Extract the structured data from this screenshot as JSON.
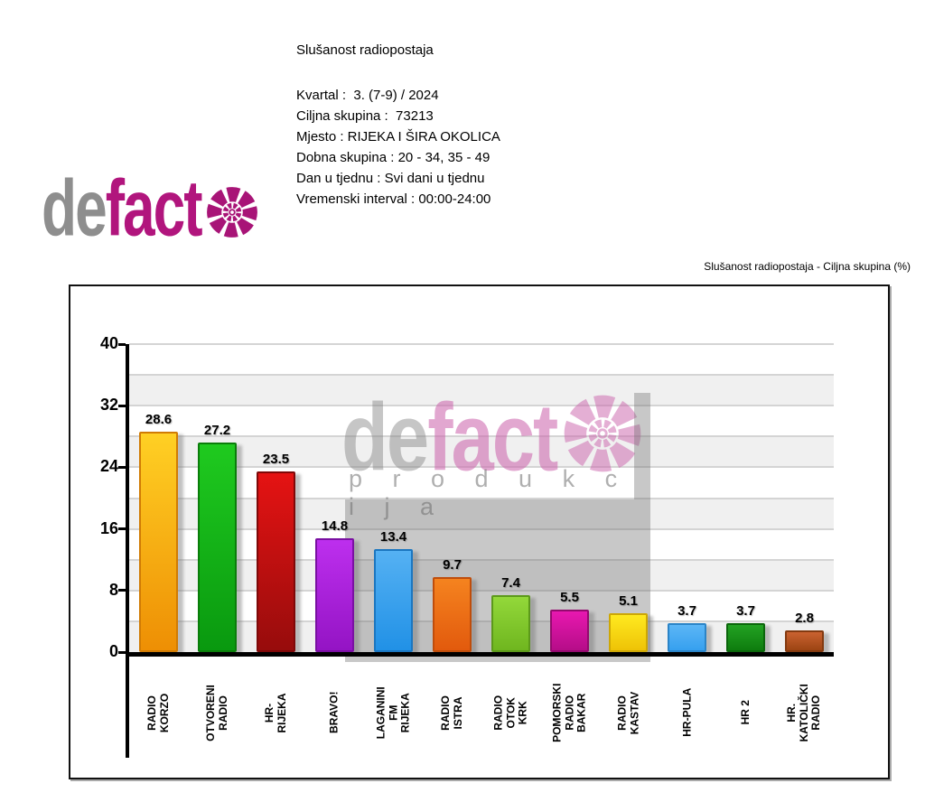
{
  "header": {
    "title": "Slušanost radiopostaja",
    "details": [
      "Kvartal :  3. (7-9) / 2024",
      "Ciljna skupina :  73213",
      "Mjesto : RIJEKA I ŠIRA OKOLICA",
      "Dobna skupina : 20 - 34, 35 - 49",
      "Dan u tjednu : Svi dani u tjednu",
      "Vremenski interval : 00:00-24:00"
    ]
  },
  "logo": {
    "part1": "de",
    "part2": "fact",
    "gray_color": "#8e8e8e",
    "magenta_color": "#b1157d"
  },
  "watermark": {
    "part1": "de",
    "part2": "fact",
    "subtitle": "p r o d u k c i j a"
  },
  "chart_caption": "Slušanost radiopostaja - Ciljna skupina (%)",
  "chart_data": {
    "type": "bar",
    "title": "Slušanost radiopostaja - Ciljna skupina (%)",
    "categories": [
      "RADIO\nKORZO",
      "OTVORENI\nRADIO",
      "HR-RIJEKA",
      "BRAVO!",
      "LAGANINI FM\nRIJEKA",
      "RADIO ISTRA",
      "RADIO OTOK\nKRK",
      "POMORSKI\nRADIO BAKAR",
      "RADIO\nKASTAV",
      "HR-PULA",
      "HR 2",
      "HR.\nKATOLIČKI\nRADIO"
    ],
    "values": [
      28.6,
      27.2,
      23.5,
      14.8,
      13.4,
      9.7,
      7.4,
      5.5,
      5.1,
      3.7,
      3.7,
      2.8
    ],
    "bar_colors": [
      {
        "top": "#ffd024",
        "bottom": "#ee8f04",
        "border": "#d07b04"
      },
      {
        "top": "#1fca1f",
        "bottom": "#09990f",
        "border": "#0a7d0a"
      },
      {
        "top": "#e51313",
        "bottom": "#970c0c",
        "border": "#7e0909"
      },
      {
        "top": "#bd2fee",
        "bottom": "#9414c4",
        "border": "#7a10a2"
      },
      {
        "top": "#55b1f3",
        "bottom": "#2191e6",
        "border": "#1b76c0"
      },
      {
        "top": "#f5831f",
        "bottom": "#e25a0d",
        "border": "#bf4d0b"
      },
      {
        "top": "#93d83a",
        "bottom": "#6fb61f",
        "border": "#5c991a"
      },
      {
        "top": "#e818b0",
        "bottom": "#b50d88",
        "border": "#930a6e"
      },
      {
        "top": "#ffe920",
        "bottom": "#eec306",
        "border": "#cda705"
      },
      {
        "top": "#5cb6f6",
        "bottom": "#36a0ef",
        "border": "#2b84c7"
      },
      {
        "top": "#23a223",
        "bottom": "#0e7c0e",
        "border": "#0b660b"
      },
      {
        "top": "#ca6230",
        "bottom": "#9c4413",
        "border": "#833a10"
      }
    ],
    "xlabel": "",
    "ylabel": "",
    "ylim": [
      0,
      40
    ],
    "ytick_step": 8,
    "grid_step": 4,
    "grid": true,
    "stripe_colors": [
      "#ffffff",
      "#f0f0f0"
    ],
    "legend": "none"
  }
}
